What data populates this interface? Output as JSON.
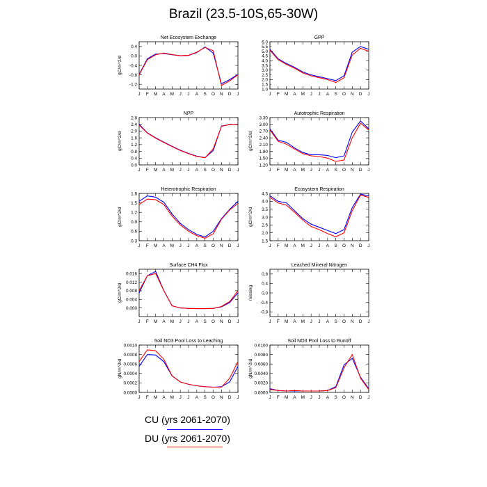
{
  "title": "Brazil (23.5-10S,65-30W)",
  "months": [
    "J",
    "F",
    "M",
    "A",
    "M",
    "J",
    "J",
    "A",
    "S",
    "O",
    "N",
    "D",
    "J"
  ],
  "colors": {
    "cu": "#0000ff",
    "du": "#ff0000"
  },
  "legend": [
    {
      "label": "CU (yrs 2061-2070)",
      "color": "#0000ff"
    },
    {
      "label": "DU (yrs 2061-2070)",
      "color": "#ff0000"
    }
  ],
  "chart_data": [
    {
      "type": "line",
      "title": "Net Ecosystem Exchange",
      "ylabel": "gC/m^2/d",
      "ylim": [
        -1.4,
        0.6
      ],
      "yticks": [
        "0.4",
        "0.0",
        "-0.4",
        "-0.8",
        "-1.2"
      ],
      "ytick_values": [
        0.4,
        0.0,
        -0.4,
        -0.8,
        -1.2
      ],
      "series": [
        {
          "name": "CU",
          "values": [
            -0.78,
            -0.12,
            0.08,
            0.1,
            0.05,
            0.01,
            0.02,
            0.14,
            0.38,
            0.12,
            -1.18,
            -1.0,
            -0.78
          ]
        },
        {
          "name": "DU",
          "values": [
            -0.8,
            -0.16,
            0.05,
            0.12,
            0.06,
            0.01,
            0.03,
            0.16,
            0.36,
            0.22,
            -1.25,
            -1.05,
            -0.8
          ]
        }
      ]
    },
    {
      "type": "line",
      "title": "GPP",
      "ylabel": "",
      "ylim": [
        1.0,
        6.0
      ],
      "yticks": [
        "6.0",
        "5.0",
        "4.0",
        "3.0",
        "2.0",
        "1.0"
      ],
      "ytick_values": [
        6,
        5,
        4,
        3,
        2,
        1
      ],
      "yticks_minor": [
        "5.5",
        "4.5",
        "3.5",
        "2.5",
        "1.5"
      ],
      "ytick_minor_values": [
        5.5,
        4.5,
        3.5,
        2.5,
        1.5
      ],
      "series": [
        {
          "name": "CU",
          "values": [
            5.2,
            4.2,
            3.7,
            3.3,
            2.8,
            2.5,
            2.3,
            2.1,
            1.9,
            2.4,
            4.9,
            5.5,
            5.2
          ]
        },
        {
          "name": "DU",
          "values": [
            5.1,
            4.1,
            3.6,
            3.2,
            2.7,
            2.4,
            2.2,
            2.0,
            1.7,
            2.2,
            4.6,
            5.3,
            5.0
          ]
        }
      ]
    },
    {
      "type": "line",
      "title": "NPP",
      "ylabel": "gC/m^2/d",
      "ylim": [
        0.0,
        2.8
      ],
      "yticks": [
        "2.8",
        "2.4",
        "2.0",
        "1.6",
        "1.2",
        "0.8",
        "0.4",
        "0.0"
      ],
      "ytick_values": [
        2.8,
        2.4,
        2.0,
        1.6,
        1.2,
        0.8,
        0.4,
        0.0
      ],
      "series": [
        {
          "name": "CU",
          "values": [
            2.4,
            1.9,
            1.6,
            1.35,
            1.1,
            0.87,
            0.68,
            0.52,
            0.43,
            0.85,
            2.3,
            2.38,
            2.4
          ]
        },
        {
          "name": "DU",
          "values": [
            2.35,
            1.88,
            1.58,
            1.33,
            1.08,
            0.85,
            0.66,
            0.5,
            0.42,
            0.95,
            2.28,
            2.4,
            2.38
          ]
        }
      ]
    },
    {
      "type": "line",
      "title": "Autotrophic Respiration",
      "ylabel": "gC/m^2/d",
      "ylim": [
        1.2,
        3.3
      ],
      "yticks": [
        "3.30",
        "3.00",
        "2.70",
        "2.40",
        "2.10",
        "1.80",
        "1.50",
        "1.20"
      ],
      "ytick_values": [
        3.3,
        3.0,
        2.7,
        2.4,
        2.1,
        1.8,
        1.5,
        1.2
      ],
      "series": [
        {
          "name": "CU",
          "values": [
            2.8,
            2.3,
            2.2,
            1.95,
            1.75,
            1.65,
            1.65,
            1.62,
            1.52,
            1.6,
            2.65,
            3.15,
            2.8
          ]
        },
        {
          "name": "DU",
          "values": [
            2.75,
            2.25,
            2.12,
            1.9,
            1.7,
            1.6,
            1.57,
            1.5,
            1.35,
            1.42,
            2.4,
            3.05,
            2.75
          ]
        }
      ]
    },
    {
      "type": "line",
      "title": "Heterotrophic Respiration",
      "ylabel": "gC/m^2/d",
      "ylim": [
        0.3,
        1.8
      ],
      "yticks": [
        "1.8",
        "1.5",
        "1.2",
        "0.9",
        "0.6",
        "0.3"
      ],
      "ytick_values": [
        1.8,
        1.5,
        1.2,
        0.9,
        0.6,
        0.3
      ],
      "series": [
        {
          "name": "CU",
          "values": [
            1.55,
            1.72,
            1.68,
            1.52,
            1.15,
            0.85,
            0.65,
            0.5,
            0.42,
            0.6,
            1.0,
            1.3,
            1.55
          ]
        },
        {
          "name": "DU",
          "values": [
            1.45,
            1.62,
            1.6,
            1.45,
            1.08,
            0.8,
            0.6,
            0.46,
            0.38,
            0.52,
            0.98,
            1.28,
            1.48
          ]
        }
      ]
    },
    {
      "type": "line",
      "title": "Ecosystem Respiration",
      "ylabel": "gC/m^2/d",
      "ylim": [
        1.5,
        4.5
      ],
      "yticks": [
        "4.5",
        "4.0",
        "3.5",
        "3.0",
        "2.5",
        "2.0",
        "1.5"
      ],
      "ytick_values": [
        4.5,
        4.0,
        3.5,
        3.0,
        2.5,
        2.0,
        1.5
      ],
      "series": [
        {
          "name": "CU",
          "values": [
            4.35,
            4.0,
            3.9,
            3.4,
            2.9,
            2.55,
            2.35,
            2.15,
            1.95,
            2.2,
            3.6,
            4.45,
            4.35
          ]
        },
        {
          "name": "DU",
          "values": [
            4.25,
            3.9,
            3.75,
            3.3,
            2.8,
            2.4,
            2.2,
            1.95,
            1.75,
            2.0,
            3.4,
            4.4,
            4.25
          ]
        }
      ]
    },
    {
      "type": "line",
      "title": "Surface CH4 Flux",
      "ylabel": "gC/m^2/d",
      "ylim": [
        -0.004,
        0.018
      ],
      "yticks": [
        "0.016",
        "0.012",
        "0.008",
        "0.004",
        "0.000"
      ],
      "ytick_values": [
        0.016,
        0.012,
        0.008,
        0.004,
        0.0
      ],
      "series": [
        {
          "name": "CU",
          "values": [
            0.007,
            0.015,
            0.017,
            0.008,
            0.001,
            0.0,
            -0.0002,
            -0.0003,
            -0.0003,
            -0.0002,
            0.0005,
            0.0025,
            0.007
          ]
        },
        {
          "name": "DU",
          "values": [
            0.008,
            0.015,
            0.016,
            0.008,
            0.001,
            0.0,
            -0.0002,
            -0.0003,
            -0.0003,
            -0.0002,
            0.0007,
            0.003,
            0.008
          ]
        }
      ]
    },
    {
      "type": "line",
      "title": "Leached Mineral Nitrogen",
      "ylabel": "missing",
      "ylim": [
        -1.0,
        1.0
      ],
      "yticks": [
        "0.8",
        "0.4",
        "0.0",
        "-0.4",
        "-0.8"
      ],
      "ytick_values": [
        0.8,
        0.4,
        0.0,
        -0.4,
        -0.8
      ],
      "series": []
    },
    {
      "type": "line",
      "title": "Soil NO3 Pool Loss to Leaching",
      "ylabel": "gN/m^2/d",
      "ylim": [
        0.0,
        0.001
      ],
      "yticks": [
        "0.0010",
        "0.0008",
        "0.0006",
        "0.0004",
        "0.0002",
        "0.0000"
      ],
      "ytick_values": [
        0.001,
        0.0008,
        0.0006,
        0.0004,
        0.0002,
        0.0
      ],
      "series": [
        {
          "name": "CU",
          "values": [
            0.00055,
            0.0008,
            0.00079,
            0.00065,
            0.00035,
            0.00022,
            0.00017,
            0.00014,
            0.00012,
            0.00011,
            0.00012,
            0.00022,
            0.00055
          ]
        },
        {
          "name": "DU",
          "values": [
            0.00065,
            0.0009,
            0.00088,
            0.0007,
            0.00035,
            0.00022,
            0.00017,
            0.00014,
            0.00012,
            0.00011,
            0.00011,
            0.0003,
            0.00065
          ]
        }
      ]
    },
    {
      "type": "line",
      "title": "Soil NO3 Pool Loss to Runoff",
      "ylabel": "gN/m^2/d",
      "ylim": [
        0.0,
        0.01
      ],
      "yticks": [
        "0.0100",
        "0.0080",
        "0.0060",
        "0.0040",
        "0.0020",
        "0.0000"
      ],
      "ytick_values": [
        0.01,
        0.008,
        0.006,
        0.004,
        0.002,
        0.0
      ],
      "series": [
        {
          "name": "CU",
          "values": [
            0.0008,
            0.0004,
            0.0003,
            0.0003,
            0.0003,
            0.0003,
            0.0003,
            0.0004,
            0.0012,
            0.0058,
            0.0072,
            0.0032,
            0.0008
          ]
        },
        {
          "name": "DU",
          "values": [
            0.0006,
            0.0004,
            0.0003,
            0.0004,
            0.0003,
            0.0003,
            0.0003,
            0.0004,
            0.001,
            0.0052,
            0.008,
            0.003,
            0.0006
          ]
        }
      ]
    }
  ]
}
